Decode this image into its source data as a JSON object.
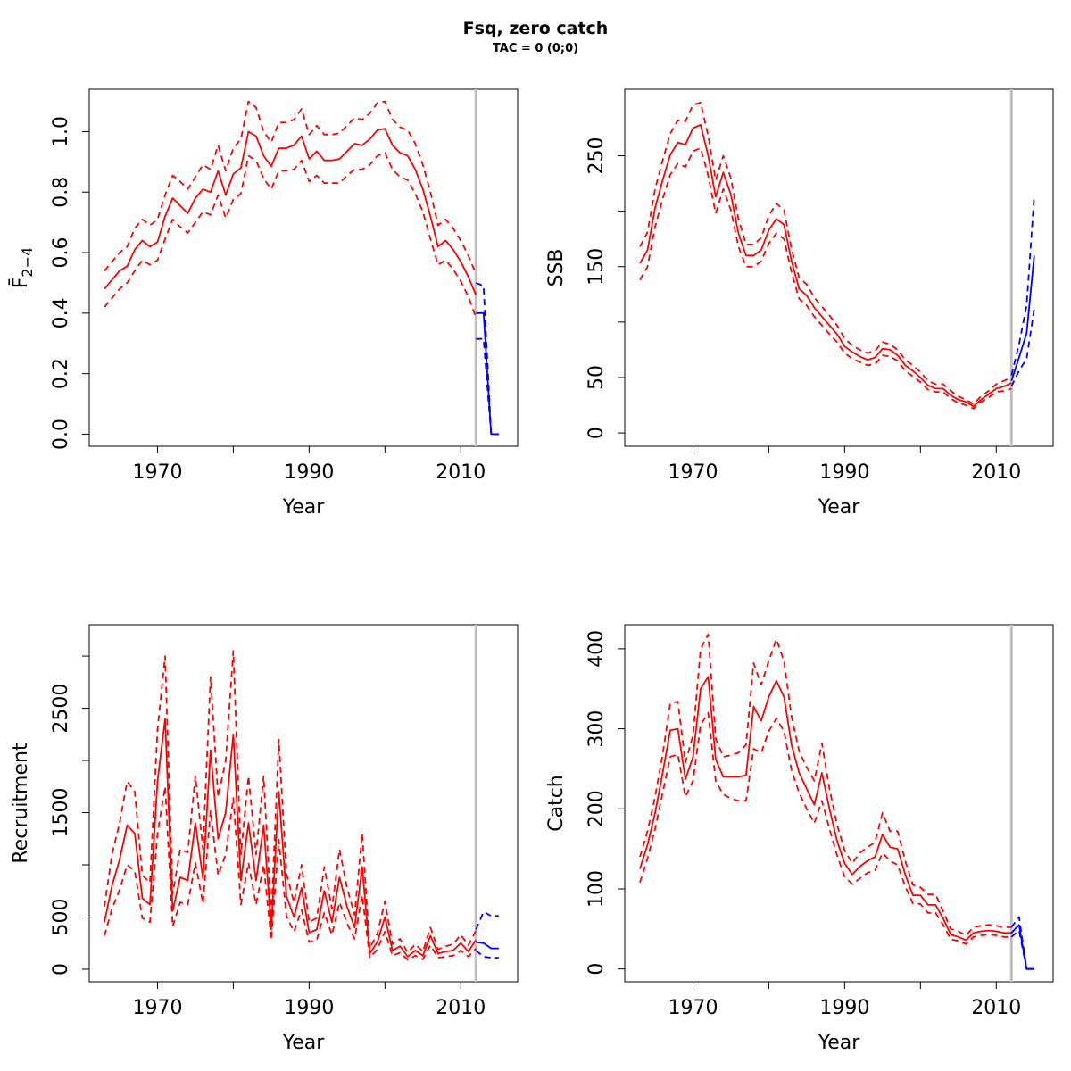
{
  "title": "Fsq, zero catch",
  "subtitle": "TAC = 0 (0;0)",
  "colors": {
    "historic": "#ff0000",
    "forecast": "#0000ff",
    "divider": "#bebebe"
  },
  "chart_data": [
    {
      "type": "line",
      "name": "fbar",
      "xlabel": "Year",
      "ylabel": "F̄",
      "ylabel_sub": "2−4",
      "xlim": [
        1961,
        2017.5
      ],
      "ylim": [
        -0.04,
        1.14
      ],
      "xticks": [
        1970,
        1990,
        2010
      ],
      "xminor": [
        1980,
        2000
      ],
      "yticks": [
        0.0,
        0.2,
        0.4,
        0.6,
        0.8,
        1.0
      ],
      "ytick_labels": [
        "0.0",
        "0.2",
        "0.4",
        "0.6",
        "0.8",
        "1.0"
      ],
      "divider_year": 2012,
      "historic": {
        "x": [
          1963,
          1964,
          1965,
          1966,
          1967,
          1968,
          1969,
          1970,
          1971,
          1972,
          1973,
          1974,
          1975,
          1976,
          1977,
          1978,
          1979,
          1980,
          1981,
          1982,
          1983,
          1984,
          1985,
          1986,
          1987,
          1988,
          1989,
          1990,
          1991,
          1992,
          1993,
          1994,
          1995,
          1996,
          1997,
          1998,
          1999,
          2000,
          2001,
          2002,
          2003,
          2004,
          2005,
          2006,
          2007,
          2008,
          2009,
          2010,
          2011,
          2012
        ],
        "mid": [
          0.48,
          0.51,
          0.54,
          0.555,
          0.61,
          0.64,
          0.62,
          0.635,
          0.72,
          0.78,
          0.755,
          0.73,
          0.78,
          0.81,
          0.8,
          0.87,
          0.79,
          0.86,
          0.88,
          1.0,
          0.985,
          0.92,
          0.885,
          0.945,
          0.945,
          0.955,
          0.985,
          0.91,
          0.935,
          0.905,
          0.905,
          0.91,
          0.935,
          0.96,
          0.955,
          0.975,
          1.005,
          1.01,
          0.955,
          0.93,
          0.92,
          0.875,
          0.81,
          0.72,
          0.62,
          0.64,
          0.61,
          0.57,
          0.52,
          0.46
        ],
        "upper": [
          0.54,
          0.57,
          0.6,
          0.62,
          0.68,
          0.71,
          0.69,
          0.71,
          0.79,
          0.855,
          0.835,
          0.81,
          0.85,
          0.89,
          0.875,
          0.955,
          0.87,
          0.945,
          0.975,
          1.1,
          1.08,
          1.0,
          0.965,
          1.03,
          1.03,
          1.04,
          1.075,
          0.99,
          1.02,
          0.99,
          0.99,
          0.995,
          1.02,
          1.045,
          1.04,
          1.06,
          1.095,
          1.1,
          1.04,
          1.015,
          1.005,
          0.96,
          0.89,
          0.8,
          0.69,
          0.71,
          0.68,
          0.64,
          0.59,
          0.53
        ],
        "lower": [
          0.42,
          0.45,
          0.48,
          0.5,
          0.54,
          0.575,
          0.56,
          0.575,
          0.645,
          0.71,
          0.685,
          0.665,
          0.7,
          0.735,
          0.725,
          0.79,
          0.715,
          0.775,
          0.795,
          0.92,
          0.905,
          0.845,
          0.81,
          0.87,
          0.87,
          0.875,
          0.905,
          0.835,
          0.855,
          0.83,
          0.83,
          0.83,
          0.855,
          0.875,
          0.875,
          0.89,
          0.92,
          0.93,
          0.875,
          0.85,
          0.84,
          0.795,
          0.735,
          0.645,
          0.56,
          0.575,
          0.545,
          0.505,
          0.455,
          0.385
        ]
      },
      "forecast": {
        "x": [
          2012,
          2013,
          2014,
          2015
        ],
        "mid": [
          0.4,
          0.4,
          0.0,
          0.0
        ],
        "upper": [
          0.5,
          0.49,
          0.0,
          0.0
        ],
        "lower": [
          0.315,
          0.315,
          0.0,
          0.0
        ]
      }
    },
    {
      "type": "line",
      "name": "ssb",
      "xlabel": "Year",
      "ylabel": "SSB",
      "xlim": [
        1961,
        2017.5
      ],
      "ylim": [
        -12,
        310
      ],
      "xticks": [
        1970,
        1990,
        2010
      ],
      "xminor": [
        1980,
        2000
      ],
      "yticks": [
        0,
        50,
        150,
        250
      ],
      "yminor": [
        100,
        200
      ],
      "ytick_labels": [
        "0",
        "50",
        "150",
        "250"
      ],
      "divider_year": 2012,
      "historic": {
        "x": [
          1963,
          1964,
          1965,
          1966,
          1967,
          1968,
          1969,
          1970,
          1971,
          1972,
          1973,
          1974,
          1975,
          1976,
          1977,
          1978,
          1979,
          1980,
          1981,
          1982,
          1983,
          1984,
          1985,
          1986,
          1987,
          1988,
          1989,
          1990,
          1991,
          1992,
          1993,
          1994,
          1995,
          1996,
          1997,
          1998,
          1999,
          2000,
          2001,
          2002,
          2003,
          2004,
          2005,
          2006,
          2007,
          2008,
          2009,
          2010,
          2011,
          2012
        ],
        "mid": [
          153,
          165,
          203,
          228,
          251,
          262,
          260,
          275,
          278,
          250,
          213,
          235,
          215,
          180,
          160,
          160,
          165,
          183,
          193,
          188,
          155,
          130,
          124,
          113,
          105,
          97,
          89,
          78,
          73,
          69,
          66,
          68,
          76,
          75,
          70,
          61,
          56,
          50,
          43,
          40,
          40,
          34,
          30,
          28,
          24,
          30,
          35,
          40,
          42,
          45
        ],
        "upper": [
          168,
          181,
          220,
          246,
          270,
          282,
          281,
          296,
          298,
          268,
          228,
          250,
          230,
          193,
          170,
          170,
          176,
          196,
          207,
          201,
          166,
          140,
          134,
          122,
          114,
          106,
          97,
          85,
          79,
          75,
          72,
          74,
          82,
          80,
          75,
          66,
          61,
          55,
          47,
          44,
          44,
          38,
          33,
          30,
          26,
          33,
          38,
          44,
          47,
          50
        ],
        "lower": [
          138,
          150,
          186,
          211,
          233,
          243,
          240,
          254,
          257,
          232,
          198,
          220,
          201,
          168,
          150,
          150,
          155,
          171,
          180,
          175,
          145,
          121,
          115,
          105,
          97,
          89,
          82,
          72,
          67,
          64,
          61,
          62,
          70,
          69,
          65,
          56,
          51,
          46,
          39,
          37,
          37,
          31,
          27,
          25,
          22,
          28,
          32,
          37,
          38,
          40
        ]
      },
      "forecast": {
        "x": [
          2012,
          2013,
          2014,
          2015
        ],
        "mid": [
          47,
          68,
          90,
          160
        ],
        "upper": [
          52,
          80,
          115,
          214
        ],
        "lower": [
          42,
          56,
          67,
          112
        ]
      }
    },
    {
      "type": "line",
      "name": "recruitment",
      "xlabel": "Year",
      "ylabel": "Recruitment",
      "xlim": [
        1961,
        2017.5
      ],
      "ylim": [
        -120,
        3300
      ],
      "xticks": [
        1970,
        1990,
        2010
      ],
      "xminor": [
        1980,
        2000
      ],
      "yticks": [
        0,
        500,
        1500,
        2500
      ],
      "yminor": [
        1000,
        2000,
        3000
      ],
      "ytick_labels": [
        "0",
        "500",
        "1500",
        "2500"
      ],
      "divider_year": 2012,
      "historic": {
        "x": [
          1963,
          1964,
          1965,
          1966,
          1967,
          1968,
          1969,
          1970,
          1971,
          1972,
          1973,
          1974,
          1975,
          1976,
          1977,
          1978,
          1979,
          1980,
          1981,
          1982,
          1983,
          1984,
          1985,
          1986,
          1987,
          1988,
          1989,
          1990,
          1991,
          1992,
          1993,
          1994,
          1995,
          1996,
          1997,
          1998,
          1999,
          2000,
          2001,
          2002,
          2003,
          2004,
          2005,
          2006,
          2007,
          2008,
          2009,
          2010,
          2011,
          2012
        ],
        "mid": [
          450,
          800,
          1050,
          1380,
          1300,
          680,
          620,
          1800,
          2400,
          560,
          880,
          850,
          1400,
          870,
          2100,
          1250,
          1500,
          2250,
          850,
          1400,
          850,
          1380,
          380,
          1700,
          700,
          500,
          780,
          350,
          380,
          750,
          450,
          880,
          600,
          400,
          980,
          150,
          260,
          500,
          180,
          220,
          120,
          180,
          130,
          320,
          150,
          170,
          180,
          250,
          170,
          280
        ],
        "upper": [
          600,
          1100,
          1400,
          1800,
          1700,
          900,
          830,
          2300,
          3000,
          720,
          1150,
          1120,
          1850,
          1150,
          2800,
          1650,
          2000,
          3050,
          1100,
          1850,
          1100,
          1850,
          490,
          2200,
          920,
          640,
          1000,
          450,
          490,
          980,
          580,
          1150,
          780,
          520,
          1300,
          200,
          340,
          650,
          240,
          290,
          160,
          240,
          170,
          400,
          190,
          220,
          240,
          330,
          230,
          370
        ],
        "lower": [
          320,
          580,
          760,
          1000,
          940,
          490,
          450,
          1300,
          1750,
          410,
          640,
          620,
          1020,
          630,
          1520,
          900,
          1100,
          1640,
          620,
          1020,
          620,
          1000,
          280,
          1240,
          510,
          360,
          570,
          260,
          280,
          540,
          330,
          640,
          440,
          290,
          710,
          110,
          190,
          360,
          130,
          160,
          90,
          130,
          95,
          230,
          110,
          120,
          130,
          180,
          120,
          200
        ]
      },
      "forecast": {
        "x": [
          2012,
          2013,
          2014,
          2015
        ],
        "mid": [
          260,
          250,
          200,
          200
        ],
        "upper": [
          380,
          550,
          510,
          510
        ],
        "lower": [
          180,
          120,
          110,
          110
        ]
      }
    },
    {
      "type": "line",
      "name": "catch",
      "xlabel": "Year",
      "ylabel": "Catch",
      "xlim": [
        1961,
        2017.5
      ],
      "ylim": [
        -16,
        430
      ],
      "xticks": [
        1970,
        1990,
        2010
      ],
      "xminor": [
        1980,
        2000
      ],
      "yticks": [
        0,
        100,
        200,
        300,
        400
      ],
      "ytick_labels": [
        "0",
        "100",
        "200",
        "300",
        "400"
      ],
      "divider_year": 2012,
      "historic": {
        "x": [
          1963,
          1964,
          1965,
          1966,
          1967,
          1968,
          1969,
          1970,
          1971,
          1972,
          1973,
          1974,
          1975,
          1976,
          1977,
          1978,
          1979,
          1980,
          1981,
          1982,
          1983,
          1984,
          1985,
          1986,
          1987,
          1988,
          1989,
          1990,
          1991,
          1992,
          1993,
          1994,
          1995,
          1996,
          1997,
          1998,
          1999,
          2000,
          2001,
          2002,
          2003,
          2004,
          2005,
          2006,
          2007,
          2008,
          2009,
          2010,
          2011,
          2012
        ],
        "mid": [
          125,
          155,
          195,
          245,
          298,
          300,
          237,
          265,
          350,
          365,
          262,
          240,
          240,
          240,
          242,
          328,
          310,
          340,
          360,
          340,
          280,
          245,
          225,
          205,
          245,
          200,
          160,
          132,
          118,
          128,
          135,
          140,
          168,
          152,
          150,
          118,
          92,
          92,
          80,
          80,
          63,
          43,
          40,
          36,
          45,
          47,
          48,
          47,
          45,
          45
        ],
        "upper": [
          140,
          172,
          215,
          268,
          332,
          334,
          258,
          292,
          400,
          418,
          288,
          265,
          267,
          270,
          280,
          382,
          355,
          385,
          412,
          385,
          315,
          272,
          252,
          235,
          282,
          225,
          180,
          148,
          132,
          145,
          152,
          158,
          195,
          172,
          172,
          135,
          105,
          102,
          93,
          93,
          72,
          50,
          47,
          42,
          52,
          54,
          55,
          54,
          52,
          52
        ],
        "lower": [
          108,
          138,
          175,
          220,
          265,
          268,
          215,
          235,
          305,
          320,
          235,
          218,
          213,
          210,
          210,
          275,
          270,
          297,
          313,
          297,
          248,
          220,
          200,
          182,
          210,
          175,
          142,
          115,
          106,
          113,
          120,
          123,
          145,
          135,
          130,
          103,
          82,
          81,
          70,
          70,
          55,
          37,
          35,
          31,
          40,
          42,
          43,
          42,
          40,
          40
        ]
      },
      "forecast": {
        "x": [
          2012,
          2013,
          2014,
          2015
        ],
        "mid": [
          45,
          55,
          0,
          0
        ],
        "upper": [
          52,
          65,
          0,
          0
        ],
        "lower": [
          40,
          48,
          0,
          0
        ]
      }
    }
  ]
}
